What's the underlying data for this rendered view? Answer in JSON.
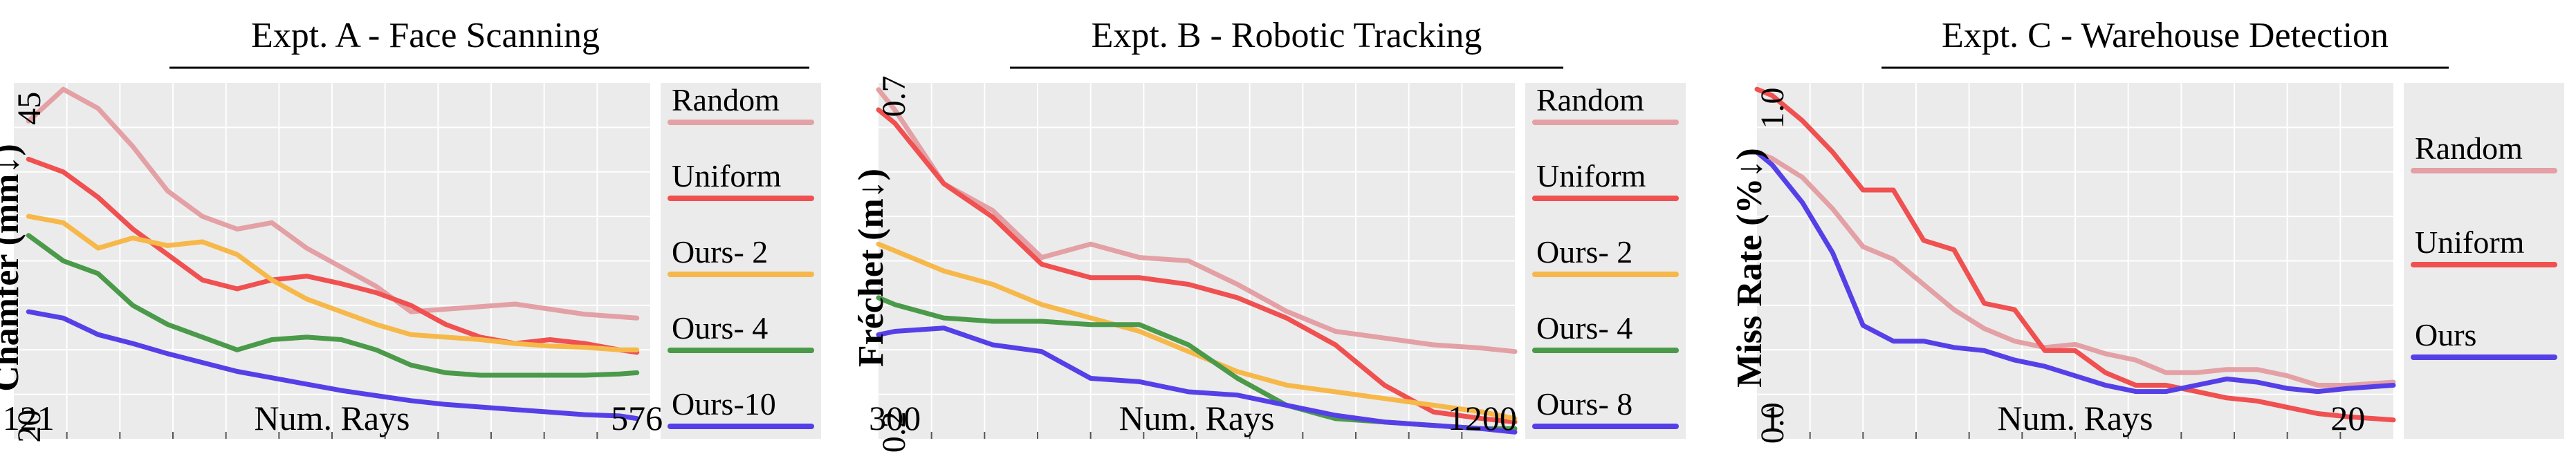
{
  "chart_data": [
    {
      "type": "line",
      "title": "Expt. A - Face Scanning",
      "xlabel": "Num. Rays",
      "ylabel": "Chamfer (mm↓)",
      "xlim": [
        110,
        586
      ],
      "ylim": [
        19,
        47
      ],
      "xticks": [
        121,
        576
      ],
      "yticks": [
        20,
        45
      ],
      "legend_position": "right",
      "x": [
        121,
        147,
        173,
        199,
        225,
        251,
        277,
        303,
        329,
        355,
        381,
        407,
        433,
        459,
        485,
        511,
        537,
        563,
        576
      ],
      "series": [
        {
          "name": "Random",
          "color": "#E3A0A5",
          "values": [
            44.0,
            46.5,
            45.0,
            42.0,
            38.5,
            36.5,
            35.5,
            36.0,
            34.0,
            32.5,
            31.0,
            29.0,
            29.2,
            29.4,
            29.6,
            29.2,
            28.8,
            28.6,
            28.5
          ]
        },
        {
          "name": "Uniform",
          "color": "#F05050",
          "values": [
            41.0,
            40.0,
            38.0,
            35.5,
            33.5,
            31.5,
            30.8,
            31.5,
            31.8,
            31.2,
            30.5,
            29.5,
            28.0,
            27.0,
            26.5,
            26.8,
            26.5,
            26.0,
            25.8
          ]
        },
        {
          "name": "Ours- 2",
          "color": "#F7B84A",
          "values": [
            36.5,
            36.0,
            34.0,
            34.8,
            34.2,
            34.5,
            33.5,
            31.5,
            30.0,
            29.0,
            28.0,
            27.2,
            27.0,
            26.8,
            26.5,
            26.3,
            26.2,
            26.0,
            26.0
          ]
        },
        {
          "name": "Ours- 4",
          "color": "#4A9A4A",
          "values": [
            35.0,
            33.0,
            32.0,
            29.5,
            28.0,
            27.0,
            26.0,
            26.8,
            27.0,
            26.8,
            26.0,
            24.8,
            24.2,
            24.0,
            24.0,
            24.0,
            24.0,
            24.1,
            24.2
          ]
        },
        {
          "name": "Ours-10",
          "color": "#5540E8",
          "values": [
            29.0,
            28.5,
            27.2,
            26.5,
            25.7,
            25.0,
            24.3,
            23.8,
            23.3,
            22.8,
            22.4,
            22.0,
            21.7,
            21.5,
            21.3,
            21.1,
            20.9,
            20.8,
            20.6
          ]
        }
      ]
    },
    {
      "type": "line",
      "title": "Expt. B - Robotic Tracking",
      "xlabel": "Num. Rays",
      "ylabel": "Fréchet (m↓)",
      "xlim": [
        275,
        1250
      ],
      "ylim": [
        0.19,
        0.72
      ],
      "xticks": [
        300,
        1200
      ],
      "yticks": [
        0.2,
        0.7
      ],
      "legend_position": "right",
      "x": [
        275,
        300,
        375,
        450,
        525,
        600,
        675,
        750,
        825,
        900,
        975,
        1050,
        1125,
        1200,
        1250
      ],
      "series": [
        {
          "name": "Random",
          "color": "#E3A0A5",
          "values": [
            0.71,
            0.68,
            0.57,
            0.53,
            0.46,
            0.48,
            0.46,
            0.455,
            0.42,
            0.38,
            0.35,
            0.34,
            0.33,
            0.325,
            0.32
          ]
        },
        {
          "name": "Uniform",
          "color": "#F05050",
          "values": [
            0.68,
            0.66,
            0.57,
            0.52,
            0.45,
            0.43,
            0.43,
            0.42,
            0.4,
            0.37,
            0.33,
            0.27,
            0.23,
            0.22,
            0.215
          ]
        },
        {
          "name": "Ours- 2",
          "color": "#F7B84A",
          "values": [
            0.48,
            0.47,
            0.44,
            0.42,
            0.39,
            0.37,
            0.35,
            0.32,
            0.29,
            0.27,
            0.26,
            0.25,
            0.24,
            0.23,
            0.22
          ]
        },
        {
          "name": "Ours- 4",
          "color": "#4A9A4A",
          "values": [
            0.4,
            0.39,
            0.37,
            0.365,
            0.365,
            0.36,
            0.36,
            0.33,
            0.28,
            0.24,
            0.22,
            0.215,
            0.21,
            0.205,
            0.205
          ]
        },
        {
          "name": "Ours- 8",
          "color": "#5540E8",
          "values": [
            0.345,
            0.35,
            0.355,
            0.33,
            0.32,
            0.28,
            0.275,
            0.26,
            0.255,
            0.24,
            0.225,
            0.215,
            0.21,
            0.205,
            0.2
          ]
        }
      ]
    },
    {
      "type": "line",
      "title": "Expt. C - Warehouse Detection",
      "xlabel": "Num. Rays",
      "ylabel": "Miss Rate (%↓)",
      "xlim": [
        0.5,
        21.5
      ],
      "ylim": [
        -0.05,
        1.08
      ],
      "xticks": [
        1,
        20
      ],
      "yticks": [
        0.0,
        1.0
      ],
      "legend_position": "right",
      "x": [
        0.5,
        1,
        2,
        3,
        4,
        5,
        6,
        7,
        8,
        9,
        10,
        11,
        12,
        13,
        14,
        15,
        16,
        17,
        18,
        19,
        20,
        21.5
      ],
      "series": [
        {
          "name": "Random",
          "color": "#E3A0A5",
          "values": [
            0.86,
            0.84,
            0.78,
            0.68,
            0.56,
            0.52,
            0.44,
            0.36,
            0.3,
            0.26,
            0.24,
            0.25,
            0.22,
            0.2,
            0.16,
            0.16,
            0.17,
            0.17,
            0.15,
            0.12,
            0.12,
            0.13
          ]
        },
        {
          "name": "Uniform",
          "color": "#F05050",
          "values": [
            1.06,
            1.04,
            0.96,
            0.86,
            0.74,
            0.74,
            0.58,
            0.55,
            0.38,
            0.36,
            0.23,
            0.23,
            0.16,
            0.12,
            0.12,
            0.1,
            0.08,
            0.07,
            0.05,
            0.03,
            0.02,
            0.01
          ]
        },
        {
          "name": "Ours",
          "color": "#5540E8",
          "values": [
            0.86,
            0.82,
            0.7,
            0.54,
            0.31,
            0.26,
            0.26,
            0.24,
            0.23,
            0.2,
            0.18,
            0.15,
            0.12,
            0.1,
            0.1,
            0.12,
            0.14,
            0.13,
            0.11,
            0.1,
            0.11,
            0.12
          ]
        }
      ]
    }
  ]
}
